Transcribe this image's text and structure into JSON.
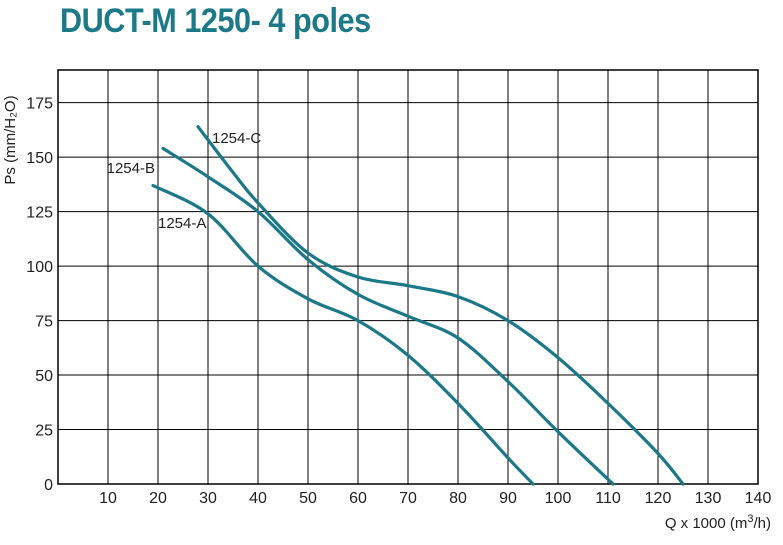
{
  "title": "DUCT-M 1250- 4 poles",
  "colors": {
    "title": "#1c7a88",
    "curve": "#1b7888",
    "grid": "#000000"
  },
  "chart_data": {
    "type": "line",
    "title": "DUCT-M 1250- 4 poles",
    "xlabel": "Q x 1000 (m",
    "xlabel_sup": "3",
    "xlabel_end": "/h)",
    "ylabel": "Ps (mm/H₂O)",
    "xlim": [
      0,
      140
    ],
    "ylim": [
      0,
      190
    ],
    "grid": true,
    "x_ticks": [
      10,
      20,
      30,
      40,
      50,
      60,
      70,
      80,
      90,
      100,
      110,
      120,
      130,
      140
    ],
    "x_tick_labels": [
      "10",
      "20",
      "30",
      "40",
      "50",
      "60",
      "70",
      "80",
      "90",
      "100",
      "110",
      "120",
      "130",
      "140"
    ],
    "y_ticks": [
      0,
      25,
      50,
      75,
      100,
      125,
      150,
      175
    ],
    "y_tick_labels": [
      "0",
      "25",
      "50",
      "75",
      "100",
      "125",
      "150",
      "175"
    ],
    "series": [
      {
        "name": "1254-A",
        "points": [
          [
            19,
            137
          ],
          [
            30,
            124
          ],
          [
            40,
            100
          ],
          [
            50,
            85
          ],
          [
            60,
            75
          ],
          [
            70,
            59
          ],
          [
            80,
            37
          ],
          [
            90,
            12
          ],
          [
            95,
            0
          ]
        ]
      },
      {
        "name": "1254-B",
        "points": [
          [
            21,
            154
          ],
          [
            30,
            141
          ],
          [
            40,
            125
          ],
          [
            50,
            103
          ],
          [
            60,
            87
          ],
          [
            70,
            77
          ],
          [
            80,
            67
          ],
          [
            90,
            47
          ],
          [
            100,
            24
          ],
          [
            111,
            0
          ]
        ]
      },
      {
        "name": "1254-C",
        "points": [
          [
            28,
            164
          ],
          [
            35,
            143
          ],
          [
            40,
            129
          ],
          [
            50,
            106
          ],
          [
            60,
            95
          ],
          [
            70,
            91
          ],
          [
            80,
            86
          ],
          [
            90,
            75
          ],
          [
            100,
            58
          ],
          [
            110,
            37
          ],
          [
            120,
            14
          ],
          [
            125,
            0
          ]
        ]
      }
    ]
  }
}
